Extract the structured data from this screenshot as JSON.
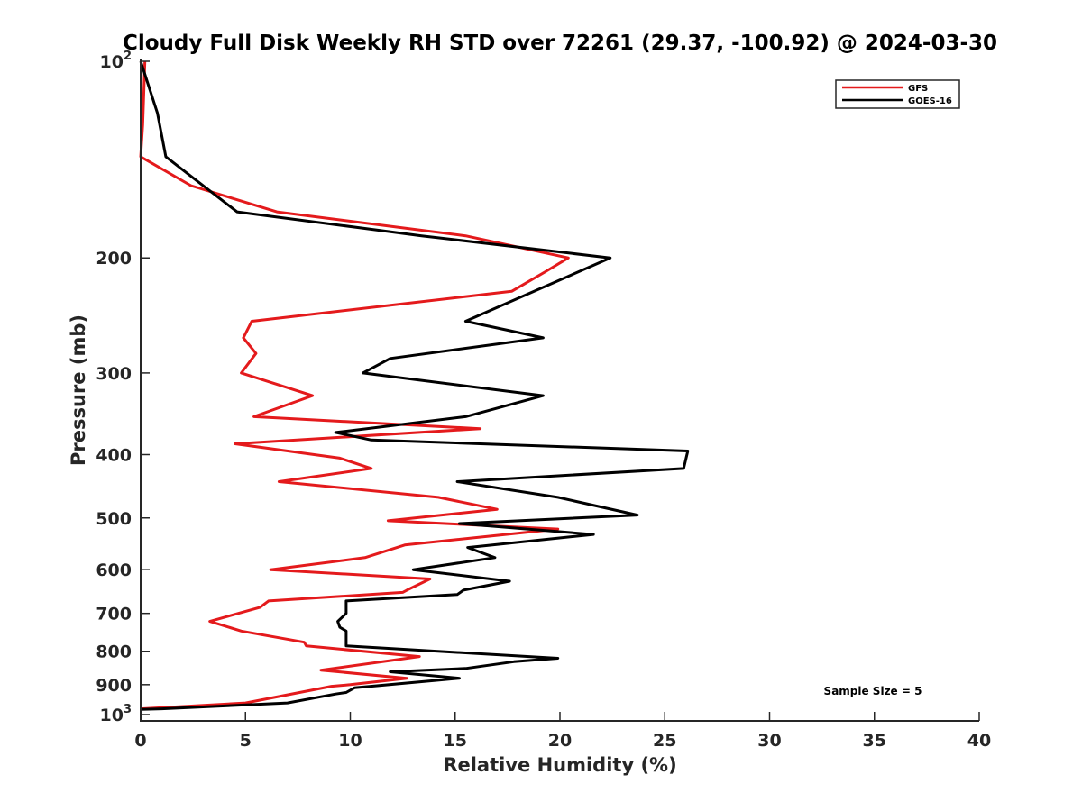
{
  "chart_data": {
    "type": "line",
    "title": "Cloudy Full Disk Weekly RH STD over 72261 (29.37, -100.92) @ 2024-03-30",
    "xlabel": "Relative Humidity (%)",
    "ylabel": "Pressure (mb)",
    "xlim": [
      0,
      40
    ],
    "ylim": [
      100,
      1000
    ],
    "y_scale": "log",
    "y_reversed": true,
    "grid": false,
    "legend_position": "top-right",
    "annotation": "Sample Size = 5",
    "x_ticks": [
      "0",
      "5",
      "10",
      "15",
      "20",
      "25",
      "30",
      "35",
      "40"
    ],
    "y_ticks": [
      {
        "value": 100,
        "label": "10",
        "sup": "2"
      },
      {
        "value": 200,
        "label": "200"
      },
      {
        "value": 300,
        "label": "300"
      },
      {
        "value": 400,
        "label": "400"
      },
      {
        "value": 500,
        "label": "500"
      },
      {
        "value": 600,
        "label": "600"
      },
      {
        "value": 700,
        "label": "700"
      },
      {
        "value": 800,
        "label": "800"
      },
      {
        "value": 900,
        "label": "900"
      },
      {
        "value": 1000,
        "label": "10",
        "sup": "3"
      }
    ],
    "series": [
      {
        "name": "GFS",
        "color": "#e41a1c",
        "points": [
          [
            0.2,
            100
          ],
          [
            0.1,
            125
          ],
          [
            0.0,
            140
          ],
          [
            2.4,
            155
          ],
          [
            6.5,
            170
          ],
          [
            15.5,
            185
          ],
          [
            20.4,
            200
          ],
          [
            19.3,
            210
          ],
          [
            17.7,
            225
          ],
          [
            5.3,
            250
          ],
          [
            4.9,
            265
          ],
          [
            5.5,
            280
          ],
          [
            4.8,
            300
          ],
          [
            8.2,
            325
          ],
          [
            5.4,
            350
          ],
          [
            16.2,
            365
          ],
          [
            4.5,
            385
          ],
          [
            9.5,
            405
          ],
          [
            11.0,
            420
          ],
          [
            6.6,
            440
          ],
          [
            14.2,
            465
          ],
          [
            17.0,
            485
          ],
          [
            11.8,
            505
          ],
          [
            19.9,
            520
          ],
          [
            12.6,
            550
          ],
          [
            10.7,
            575
          ],
          [
            6.2,
            600
          ],
          [
            13.8,
            620
          ],
          [
            12.7,
            645
          ],
          [
            12.5,
            650
          ],
          [
            6.1,
            670
          ],
          [
            5.7,
            685
          ],
          [
            3.3,
            720
          ],
          [
            4.8,
            745
          ],
          [
            7.8,
            775
          ],
          [
            7.9,
            785
          ],
          [
            13.3,
            815
          ],
          [
            8.6,
            855
          ],
          [
            12.7,
            880
          ],
          [
            10.0,
            900
          ],
          [
            9.1,
            905
          ],
          [
            5.0,
            960
          ],
          [
            0.0,
            980
          ]
        ]
      },
      {
        "name": "GOES-16",
        "color": "#000000",
        "points": [
          [
            0.0,
            100
          ],
          [
            0.8,
            120
          ],
          [
            1.2,
            140
          ],
          [
            4.6,
            170
          ],
          [
            13.4,
            185
          ],
          [
            22.4,
            200
          ],
          [
            15.5,
            250
          ],
          [
            19.2,
            265
          ],
          [
            11.9,
            285
          ],
          [
            10.6,
            300
          ],
          [
            19.2,
            325
          ],
          [
            15.5,
            350
          ],
          [
            9.3,
            370
          ],
          [
            11.0,
            380
          ],
          [
            26.1,
            395
          ],
          [
            25.9,
            420
          ],
          [
            15.1,
            440
          ],
          [
            19.9,
            465
          ],
          [
            23.7,
            495
          ],
          [
            15.2,
            510
          ],
          [
            21.6,
            530
          ],
          [
            15.6,
            555
          ],
          [
            16.9,
            575
          ],
          [
            13.0,
            600
          ],
          [
            17.6,
            625
          ],
          [
            15.4,
            645
          ],
          [
            15.1,
            655
          ],
          [
            9.8,
            670
          ],
          [
            9.8,
            700
          ],
          [
            9.4,
            720
          ],
          [
            9.5,
            735
          ],
          [
            9.8,
            745
          ],
          [
            9.8,
            785
          ],
          [
            19.9,
            820
          ],
          [
            17.8,
            830
          ],
          [
            15.5,
            850
          ],
          [
            11.9,
            860
          ],
          [
            15.2,
            880
          ],
          [
            10.2,
            910
          ],
          [
            9.8,
            925
          ],
          [
            9.3,
            930
          ],
          [
            7.0,
            960
          ],
          [
            1.0,
            980
          ],
          [
            0.0,
            982
          ]
        ]
      }
    ]
  }
}
